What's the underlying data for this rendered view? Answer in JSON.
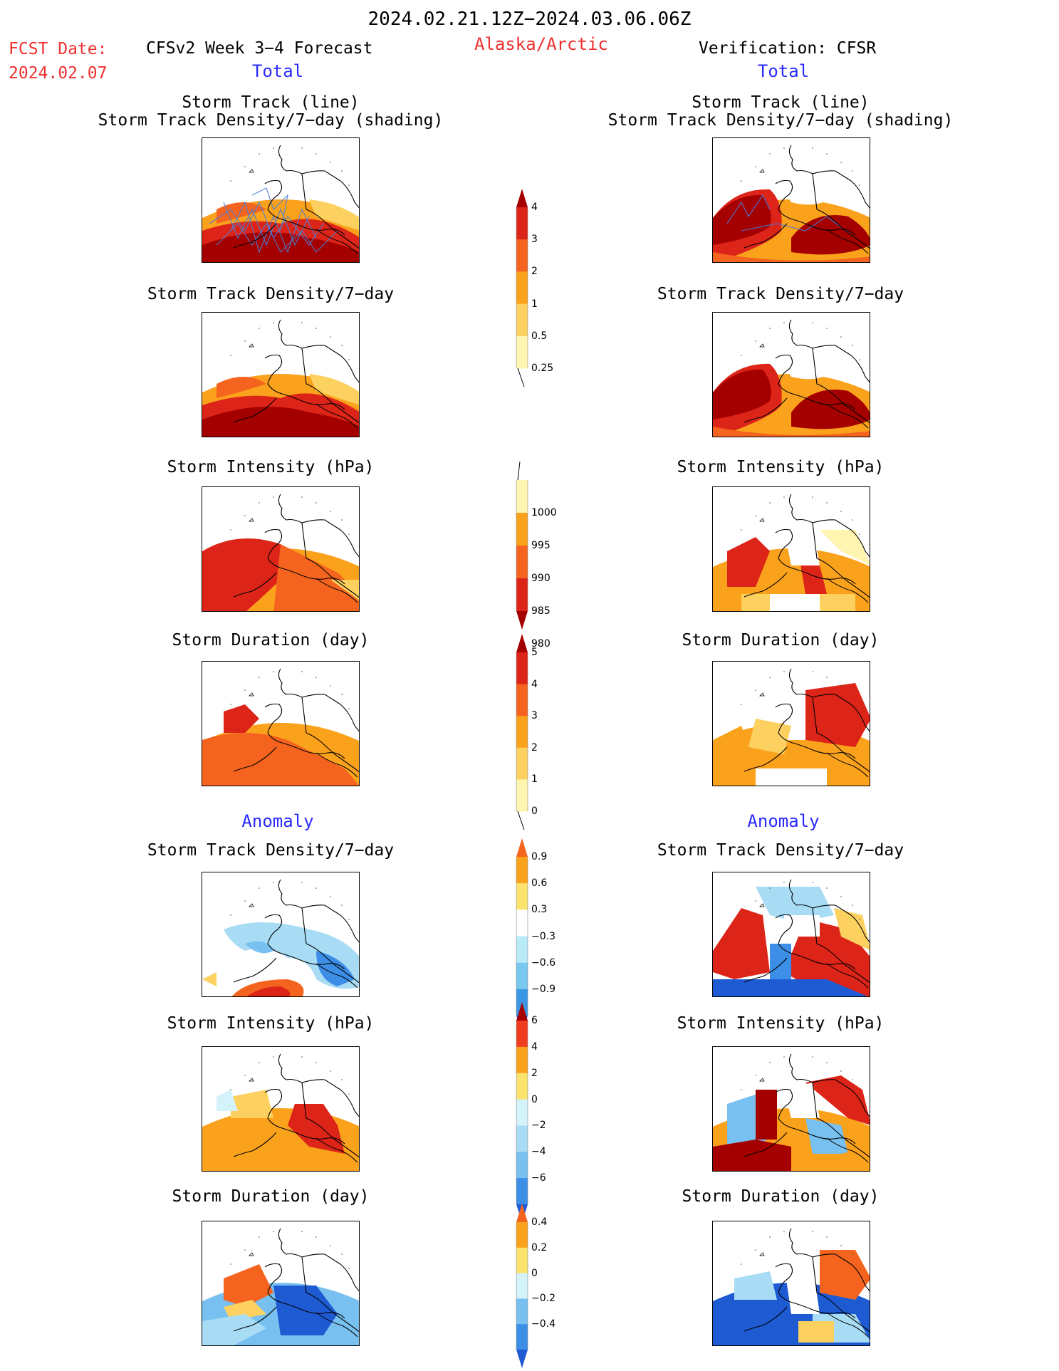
{
  "header": {
    "date_range": "2024.02.21.12Z−2024.03.06.06Z",
    "fcst_label": "FCST Date:",
    "fcst_date": "2024.02.07",
    "forecast_title": "CFSv2 Week 3−4 Forecast",
    "region": "Alaska/Arctic",
    "verification": "Verification: CFSR"
  },
  "sections": {
    "total": "Total",
    "anomaly": "Anomaly"
  },
  "panel_titles": {
    "storm_track_line": "Storm Track (line)",
    "storm_track_density_shading": "Storm Track Density/7−day (shading)",
    "storm_track_density": "Storm Track Density/7−day",
    "storm_intensity": "Storm Intensity (hPa)",
    "storm_duration": "Storm Duration (day)"
  },
  "colorbars": {
    "density": {
      "labels": [
        "4",
        "3",
        "2",
        "1",
        "0.5",
        "0.25"
      ],
      "colors": [
        "#a50000",
        "#dd2418",
        "#f5641e",
        "#fba21c",
        "#fcd160",
        "#fff4b0"
      ]
    },
    "intensity": {
      "labels": [
        "1000",
        "995",
        "990",
        "985",
        "980"
      ],
      "colors": [
        "#fff4b0",
        "#fba21c",
        "#f5641e",
        "#dd2418",
        "#a50000"
      ]
    },
    "duration": {
      "labels": [
        "5",
        "4",
        "3",
        "2",
        "1",
        "0"
      ],
      "colors": [
        "#a50000",
        "#dd2418",
        "#f5641e",
        "#fba21c",
        "#fcd160",
        "#fff4b0"
      ]
    },
    "density_anom": {
      "labels": [
        "0.9",
        "0.6",
        "0.3",
        "−0.3",
        "−0.6",
        "−0.9"
      ],
      "colors": [
        "#f5641e",
        "#fba21c",
        "#fce36e",
        "#ffffff",
        "#b8eaf7",
        "#78c8f0",
        "#3c96e6",
        "#1e5ad2"
      ]
    },
    "intensity_anom": {
      "labels": [
        "6",
        "4",
        "2",
        "0",
        "−2",
        "−4",
        "−6"
      ],
      "colors": [
        "#a50000",
        "#f03c1e",
        "#fba21c",
        "#fce36e",
        "#d4f2fa",
        "#a8dcf5",
        "#78c0f0",
        "#3c8ee6",
        "#1e5ad2"
      ]
    },
    "duration_anom": {
      "labels": [
        "0.4",
        "0.2",
        "0",
        "−0.2",
        "−0.4"
      ],
      "colors": [
        "#f5641e",
        "#fba21c",
        "#fce36e",
        "#d4f2fa",
        "#78c0f0",
        "#3c8ee6",
        "#1e5ad2"
      ]
    }
  }
}
